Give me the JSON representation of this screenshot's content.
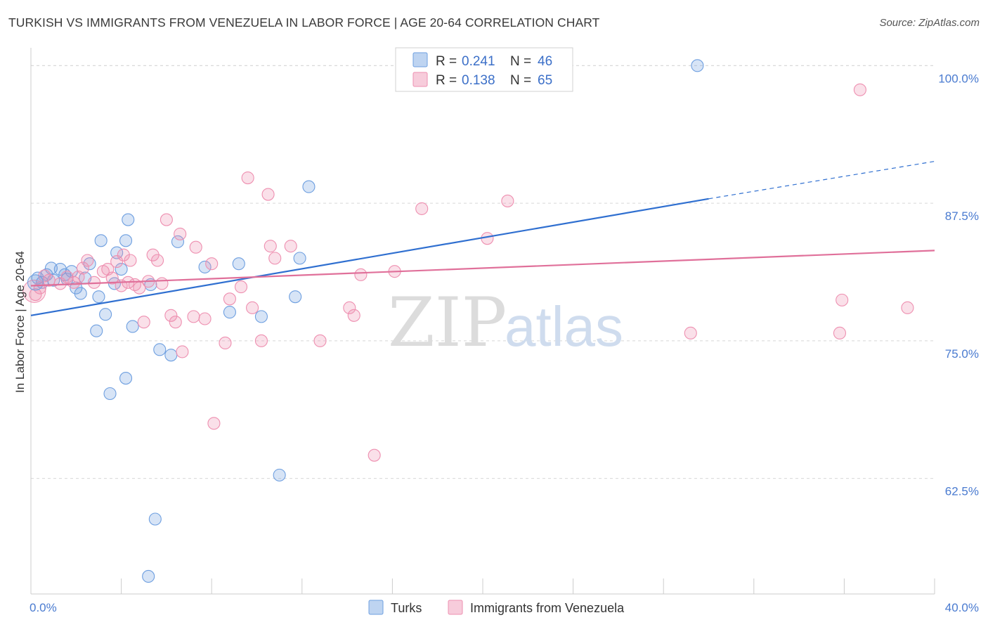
{
  "title": "TURKISH VS IMMIGRANTS FROM VENEZUELA IN LABOR FORCE | AGE 20-64 CORRELATION CHART",
  "source": "Source: ZipAtlas.com",
  "watermark": {
    "zip": "ZIP",
    "atlas": "atlas"
  },
  "colors": {
    "turks": "#6e9fe0",
    "turks_fill": "rgba(110,159,224,0.28)",
    "turks_line": "#2f6fd0",
    "venezuela": "#ee8fb0",
    "venezuela_fill": "rgba(238,143,176,0.28)",
    "venezuela_line": "#e0709a",
    "tick_label": "#4a7bd0",
    "grid": "#d8d8d8"
  },
  "legend": {
    "rows": [
      {
        "r_label": "R =",
        "r_value": "0.241",
        "n_label": "N =",
        "n_value": "46"
      },
      {
        "r_label": "R =",
        "r_value": "0.138",
        "n_label": "N =",
        "n_value": "65"
      }
    ]
  },
  "chart_data": {
    "type": "scatter",
    "ylabel": "In Labor Force | Age 20-64",
    "xlim": [
      0,
      40
    ],
    "ylim": [
      52.0,
      102.0
    ],
    "x_tick_labels": [
      "0.0%",
      "40.0%"
    ],
    "x_tick_values": [
      0,
      40
    ],
    "x_minor_ticks": [
      4,
      8,
      12,
      16,
      20,
      24,
      28,
      32,
      36
    ],
    "y_ticks": [
      {
        "value": 100.0,
        "label": "100.0%"
      },
      {
        "value": 87.5,
        "label": "87.5%"
      },
      {
        "value": 75.0,
        "label": "75.0%"
      },
      {
        "value": 62.5,
        "label": "62.5%"
      }
    ],
    "grid": true,
    "series": [
      {
        "name": "Turks",
        "key": "turks",
        "trend": {
          "x0": 0,
          "y0": 77.3,
          "x1": 30.0,
          "y1": 87.9,
          "dash_to_x": 40,
          "dash_to_y": 91.3
        },
        "points": [
          [
            0.3,
            80.7
          ],
          [
            0.5,
            80.3
          ],
          [
            0.7,
            81.0
          ],
          [
            0.9,
            81.6
          ],
          [
            1.0,
            80.5
          ],
          [
            1.3,
            81.5
          ],
          [
            1.5,
            81.0
          ],
          [
            1.6,
            80.6
          ],
          [
            1.8,
            81.3
          ],
          [
            2.0,
            79.8
          ],
          [
            2.2,
            79.3
          ],
          [
            2.4,
            80.7
          ],
          [
            2.6,
            82.0
          ],
          [
            2.9,
            75.9
          ],
          [
            3.0,
            79.0
          ],
          [
            3.1,
            84.1
          ],
          [
            3.3,
            77.4
          ],
          [
            3.5,
            70.2
          ],
          [
            3.7,
            80.2
          ],
          [
            3.8,
            83.0
          ],
          [
            4.0,
            81.5
          ],
          [
            4.2,
            71.6
          ],
          [
            4.2,
            84.1
          ],
          [
            4.3,
            86.0
          ],
          [
            4.5,
            76.3
          ],
          [
            5.3,
            80.1
          ],
          [
            5.5,
            58.8
          ],
          [
            5.2,
            53.6
          ],
          [
            5.7,
            74.2
          ],
          [
            6.2,
            73.7
          ],
          [
            6.5,
            84.0
          ],
          [
            7.7,
            81.7
          ],
          [
            8.8,
            77.6
          ],
          [
            9.2,
            82.0
          ],
          [
            10.2,
            77.2
          ],
          [
            11.0,
            62.8
          ],
          [
            11.7,
            79.0
          ],
          [
            11.9,
            82.5
          ],
          [
            12.3,
            89.0
          ],
          [
            29.5,
            100.0
          ]
        ]
      },
      {
        "name": "Immigrants from Venezuela",
        "key": "venezuela",
        "trend": {
          "x0": 0,
          "y0": 80.0,
          "x1": 40,
          "y1": 83.2
        },
        "points": [
          [
            0.2,
            79.2
          ],
          [
            0.4,
            79.8
          ],
          [
            0.6,
            80.9
          ],
          [
            0.8,
            80.5
          ],
          [
            1.3,
            80.2
          ],
          [
            1.6,
            80.8
          ],
          [
            1.9,
            80.3
          ],
          [
            2.1,
            80.8
          ],
          [
            2.3,
            81.6
          ],
          [
            2.5,
            82.3
          ],
          [
            2.8,
            80.3
          ],
          [
            3.2,
            81.3
          ],
          [
            3.4,
            81.5
          ],
          [
            3.6,
            80.7
          ],
          [
            3.8,
            82.2
          ],
          [
            4.0,
            80.0
          ],
          [
            4.1,
            82.8
          ],
          [
            4.3,
            80.3
          ],
          [
            4.4,
            82.3
          ],
          [
            4.6,
            80.1
          ],
          [
            4.8,
            79.8
          ],
          [
            5.0,
            76.7
          ],
          [
            5.2,
            80.4
          ],
          [
            5.4,
            82.8
          ],
          [
            5.6,
            82.3
          ],
          [
            5.8,
            80.2
          ],
          [
            6.0,
            86.0
          ],
          [
            6.2,
            77.3
          ],
          [
            6.4,
            76.7
          ],
          [
            6.6,
            84.7
          ],
          [
            6.7,
            74.0
          ],
          [
            7.2,
            77.2
          ],
          [
            7.3,
            83.5
          ],
          [
            7.7,
            77.0
          ],
          [
            8.0,
            82.0
          ],
          [
            8.1,
            67.5
          ],
          [
            8.6,
            74.8
          ],
          [
            8.8,
            78.8
          ],
          [
            9.3,
            79.9
          ],
          [
            9.6,
            89.8
          ],
          [
            9.8,
            78.0
          ],
          [
            10.2,
            75.0
          ],
          [
            10.5,
            88.3
          ],
          [
            10.6,
            83.6
          ],
          [
            10.8,
            82.5
          ],
          [
            11.5,
            83.6
          ],
          [
            12.8,
            75.0
          ],
          [
            14.1,
            78.0
          ],
          [
            14.3,
            77.3
          ],
          [
            14.6,
            81.0
          ],
          [
            15.2,
            64.6
          ],
          [
            16.1,
            81.3
          ],
          [
            17.3,
            87.0
          ],
          [
            20.2,
            84.3
          ],
          [
            21.1,
            87.7
          ],
          [
            21.8,
            100.0
          ],
          [
            29.2,
            75.7
          ],
          [
            35.8,
            75.7
          ],
          [
            35.9,
            78.7
          ],
          [
            36.7,
            97.8
          ],
          [
            38.8,
            78.0
          ]
        ]
      }
    ],
    "legend_entries": [
      "Turks",
      "Immigrants from Venezuela"
    ]
  }
}
